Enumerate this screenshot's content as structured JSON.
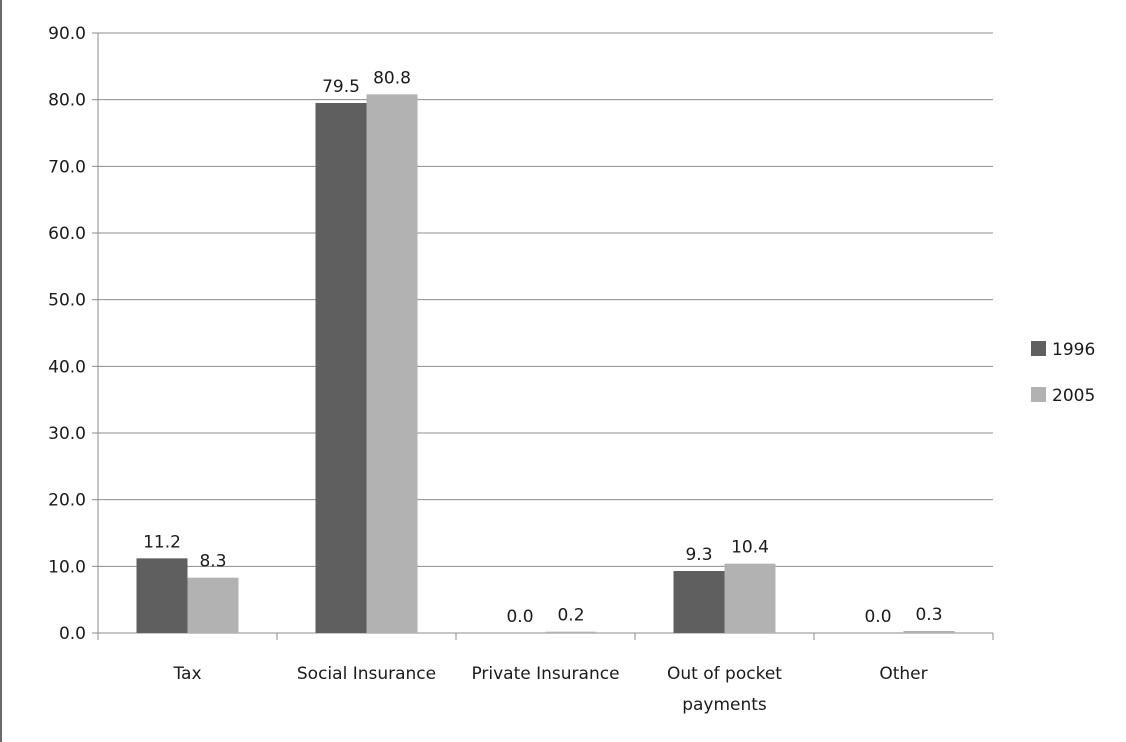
{
  "chart_data": {
    "type": "bar",
    "title": "",
    "xlabel": "",
    "ylabel": "",
    "ylim": [
      0,
      90
    ],
    "y_ticks": [
      "0.0",
      "10.0",
      "20.0",
      "30.0",
      "40.0",
      "50.0",
      "60.0",
      "70.0",
      "80.0",
      "90.0"
    ],
    "categories": [
      [
        "Tax"
      ],
      [
        "Social Insurance"
      ],
      [
        "Private Insurance"
      ],
      [
        "Out of pocket",
        "payments"
      ],
      [
        "Other"
      ]
    ],
    "series": [
      {
        "name": "1996",
        "color": "#5f5f5f",
        "values": [
          11.2,
          79.5,
          0.0,
          9.3,
          0.0
        ],
        "labels": [
          "11.2",
          "79.5",
          "0.0",
          "9.3",
          "0.0"
        ]
      },
      {
        "name": "2005",
        "color": "#b2b2b2",
        "values": [
          8.3,
          80.8,
          0.2,
          10.4,
          0.3
        ],
        "labels": [
          "8.3",
          "80.8",
          "0.2",
          "10.4",
          "0.3"
        ]
      }
    ],
    "grid": true,
    "legend": "right"
  }
}
